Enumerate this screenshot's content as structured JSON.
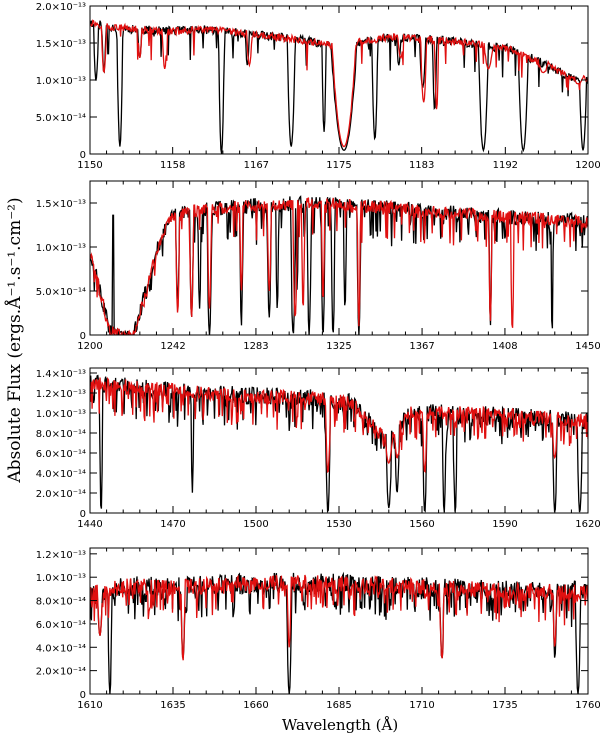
{
  "figure": {
    "ylabel": "Absolute Flux  (ergs.Å⁻¹.s⁻¹.cm⁻²)",
    "xlabel": "Wavelength (Å)"
  },
  "colors": {
    "observed": "#000000",
    "model": "#e01010",
    "axes": "#000000"
  },
  "chart_data": [
    {
      "type": "line",
      "xlim": [
        1150,
        1200
      ],
      "ylim": [
        0,
        2e-13
      ],
      "xticks": [
        "1150",
        "1158",
        "1167",
        "1175",
        "1183",
        "1192",
        "1200"
      ],
      "xtick_values": [
        1150,
        1158.3,
        1166.7,
        1175,
        1183.3,
        1191.7,
        1200
      ],
      "yticks": [
        "0",
        "5.0×10⁻¹⁴",
        "1.0×10⁻¹³",
        "1.5×10⁻¹³",
        "2.0×10⁻¹³"
      ],
      "ytick_values": [
        0,
        5e-14,
        1e-13,
        1.5e-13,
        2e-13
      ],
      "baseline": [
        [
          1150,
          1.78e-13
        ],
        [
          1152,
          1.72e-13
        ],
        [
          1155,
          1.68e-13
        ],
        [
          1158,
          1.66e-13
        ],
        [
          1162,
          1.68e-13
        ],
        [
          1166,
          1.62e-13
        ],
        [
          1170,
          1.56e-13
        ],
        [
          1173,
          1.5e-13
        ],
        [
          1175,
          1.45e-13
        ],
        [
          1176.5,
          1.5e-13
        ],
        [
          1180,
          1.58e-13
        ],
        [
          1184,
          1.55e-13
        ],
        [
          1188,
          1.5e-13
        ],
        [
          1192,
          1.42e-13
        ],
        [
          1196,
          1.2e-13
        ],
        [
          1198,
          1.05e-13
        ],
        [
          1200,
          1e-13
        ]
      ],
      "absorptions_observed": [
        [
          1150.6,
          1e-13,
          0.25
        ],
        [
          1151.4,
          1.1e-13,
          0.2
        ],
        [
          1153.0,
          1e-14,
          0.3
        ],
        [
          1155.0,
          1.3e-13,
          0.2
        ],
        [
          1163.2,
          0.0,
          0.3
        ],
        [
          1165.8,
          1.2e-13,
          0.2
        ],
        [
          1170.2,
          1e-14,
          0.4
        ],
        [
          1173.5,
          3e-14,
          0.2
        ],
        [
          1175.5,
          5e-15,
          1.3
        ],
        [
          1178.6,
          2e-14,
          0.3
        ],
        [
          1181.0,
          1.2e-13,
          0.2
        ],
        [
          1183.4,
          9e-14,
          0.3
        ],
        [
          1184.6,
          6e-14,
          0.2
        ],
        [
          1189.5,
          5e-15,
          0.5
        ],
        [
          1193.5,
          5e-15,
          0.5
        ],
        [
          1199.5,
          5e-15,
          0.35
        ]
      ],
      "absorptions_model": [
        [
          1151.4,
          1.1e-13,
          0.25
        ],
        [
          1155.0,
          1.3e-13,
          0.2
        ],
        [
          1157.5,
          1.15e-13,
          0.25
        ],
        [
          1166.0,
          1.2e-13,
          0.25
        ],
        [
          1175.5,
          1e-14,
          1.2
        ],
        [
          1181.2,
          1.3e-13,
          0.3
        ],
        [
          1183.5,
          7e-14,
          0.3
        ],
        [
          1184.8,
          6e-14,
          0.2
        ],
        [
          1190.0,
          1.15e-13,
          0.4
        ],
        [
          1195.5,
          1.1e-13,
          0.5
        ],
        [
          1199.0,
          9.5e-14,
          0.4
        ]
      ],
      "series": [
        {
          "color": "#000000"
        },
        {
          "color": "#e01010"
        }
      ]
    },
    {
      "type": "line",
      "xlim": [
        1200,
        1450
      ],
      "ylim": [
        0,
        1.75e-13
      ],
      "xticks": [
        "1200",
        "1242",
        "1283",
        "1325",
        "1367",
        "1408",
        "1450"
      ],
      "xtick_values": [
        1200,
        1241.7,
        1283.3,
        1325,
        1366.7,
        1408.3,
        1450
      ],
      "yticks": [
        "0",
        "5.0×10⁻¹⁴",
        "1.0×10⁻¹³",
        "1.5×10⁻¹³"
      ],
      "ytick_values": [
        0,
        5e-14,
        1e-13,
        1.5e-13
      ],
      "baseline": [
        [
          1200,
          9.5e-14
        ],
        [
          1205,
          5e-14
        ],
        [
          1210,
          5e-15
        ],
        [
          1215,
          0.0
        ],
        [
          1222,
          0.0
        ],
        [
          1228,
          5e-14
        ],
        [
          1234,
          1e-13
        ],
        [
          1240,
          1.33e-13
        ],
        [
          1250,
          1.4e-13
        ],
        [
          1270,
          1.45e-13
        ],
        [
          1290,
          1.48e-13
        ],
        [
          1310,
          1.5e-13
        ],
        [
          1330,
          1.48e-13
        ],
        [
          1350,
          1.45e-13
        ],
        [
          1370,
          1.4e-13
        ],
        [
          1390,
          1.37e-13
        ],
        [
          1410,
          1.34e-13
        ],
        [
          1430,
          1.32e-13
        ],
        [
          1450,
          1.28e-13
        ]
      ],
      "absorptions_observed": [
        [
          1211.5,
          1.36e-13,
          -1
        ],
        [
          1244,
          4e-14,
          1.0
        ],
        [
          1251,
          2e-14,
          1.0
        ],
        [
          1255,
          3e-14,
          0.8
        ],
        [
          1260,
          0.0,
          1.2
        ],
        [
          1276,
          1e-14,
          0.8
        ],
        [
          1290,
          2e-14,
          1.0
        ],
        [
          1294,
          3e-14,
          0.8
        ],
        [
          1302,
          0.0,
          1.2
        ],
        [
          1304,
          5e-14,
          0.6
        ],
        [
          1310,
          0.0,
          1.0
        ],
        [
          1317,
          0.0,
          1.0
        ],
        [
          1322,
          0.0,
          1.0
        ],
        [
          1328,
          3e-14,
          0.8
        ],
        [
          1335,
          0.0,
          1.0
        ],
        [
          1401,
          1e-14,
          0.7
        ],
        [
          1432,
          0.0,
          0.6
        ]
      ],
      "absorptions_model": [
        [
          1244,
          2.5e-14,
          1.0
        ],
        [
          1251,
          2e-14,
          1.0
        ],
        [
          1260,
          3e-14,
          1.0
        ],
        [
          1276,
          5e-14,
          0.8
        ],
        [
          1290,
          5e-14,
          1.0
        ],
        [
          1303,
          2e-14,
          1.2
        ],
        [
          1307,
          3e-14,
          0.8
        ],
        [
          1317,
          4e-14,
          0.8
        ],
        [
          1335,
          1e-14,
          0.8
        ],
        [
          1401,
          1.5e-14,
          0.8
        ],
        [
          1412,
          5e-15,
          0.9
        ]
      ],
      "series": [
        {
          "color": "#000000"
        },
        {
          "color": "#e01010"
        }
      ]
    },
    {
      "type": "line",
      "xlim": [
        1440,
        1620
      ],
      "ylim": [
        0,
        1.45e-13
      ],
      "xticks": [
        "1440",
        "1470",
        "1500",
        "1530",
        "1560",
        "1590",
        "1620"
      ],
      "xtick_values": [
        1440,
        1470,
        1500,
        1530,
        1560,
        1590,
        1620
      ],
      "yticks": [
        "0",
        "2.0×10⁻¹⁴",
        "4.0×10⁻¹⁴",
        "6.0×10⁻¹⁴",
        "8.0×10⁻¹⁴",
        "1.0×10⁻¹³",
        "1.2×10⁻¹³",
        "1.4×10⁻¹³"
      ],
      "ytick_values": [
        0,
        2e-14,
        4e-14,
        6e-14,
        8e-14,
        1e-13,
        1.2e-13,
        1.4e-13
      ],
      "baseline": [
        [
          1440,
          1.3e-13
        ],
        [
          1460,
          1.25e-13
        ],
        [
          1480,
          1.2e-13
        ],
        [
          1500,
          1.17e-13
        ],
        [
          1520,
          1.15e-13
        ],
        [
          1535,
          1.1e-13
        ],
        [
          1548,
          7e-14
        ],
        [
          1555,
          1e-13
        ],
        [
          1570,
          1e-13
        ],
        [
          1590,
          9.8e-14
        ],
        [
          1605,
          9.5e-14
        ],
        [
          1620,
          9.2e-14
        ]
      ],
      "absorptions_observed": [
        [
          1444,
          0.0,
          0.6
        ],
        [
          1477,
          2e-14,
          0.5
        ],
        [
          1526,
          0.0,
          0.9
        ],
        [
          1548,
          5e-15,
          1.0
        ],
        [
          1551,
          2e-14,
          0.8
        ],
        [
          1561,
          0.0,
          0.8
        ],
        [
          1568,
          0.0,
          0.7
        ],
        [
          1572,
          0.0,
          0.7
        ],
        [
          1608,
          0.0,
          0.8
        ],
        [
          1617,
          0.0,
          0.9
        ]
      ],
      "absorptions_model": [
        [
          1526,
          4e-14,
          0.9
        ],
        [
          1548,
          5e-14,
          1.2
        ],
        [
          1551,
          5.5e-14,
          0.9
        ],
        [
          1561,
          4e-14,
          0.8
        ],
        [
          1608,
          5.5e-14,
          0.9
        ]
      ],
      "series": [
        {
          "color": "#000000"
        },
        {
          "color": "#e01010"
        }
      ]
    },
    {
      "type": "line",
      "xlim": [
        1610,
        1760
      ],
      "ylim": [
        0,
        1.25e-13
      ],
      "xticks": [
        "1610",
        "1635",
        "1660",
        "1685",
        "1710",
        "1735",
        "1760"
      ],
      "xtick_values": [
        1610,
        1635,
        1660,
        1685,
        1710,
        1735,
        1760
      ],
      "yticks": [
        "0",
        "2.0×10⁻¹⁴",
        "4.0×10⁻¹⁴",
        "6.0×10⁻¹⁴",
        "8.0×10⁻¹⁴",
        "1.0×10⁻¹³",
        "1.2×10⁻¹³"
      ],
      "ytick_values": [
        0,
        2e-14,
        4e-14,
        6e-14,
        8e-14,
        1e-13,
        1.2e-13
      ],
      "baseline": [
        [
          1610,
          8.5e-14
        ],
        [
          1620,
          9.2e-14
        ],
        [
          1640,
          9.2e-14
        ],
        [
          1660,
          9.5e-14
        ],
        [
          1680,
          9.5e-14
        ],
        [
          1700,
          9.3e-14
        ],
        [
          1720,
          9e-14
        ],
        [
          1740,
          8.8e-14
        ],
        [
          1760,
          8.8e-14
        ]
      ],
      "absorptions_observed": [
        [
          1613,
          5e-14,
          0.7
        ],
        [
          1616,
          0.0,
          0.6
        ],
        [
          1638,
          3e-14,
          0.6
        ],
        [
          1670,
          0.0,
          0.8
        ],
        [
          1716,
          3e-14,
          0.6
        ],
        [
          1750,
          3e-14,
          0.5
        ],
        [
          1757,
          0.0,
          0.8
        ]
      ],
      "absorptions_model": [
        [
          1613,
          5e-14,
          0.7
        ],
        [
          1638,
          2.8e-14,
          0.6
        ],
        [
          1670,
          4e-14,
          0.6
        ],
        [
          1716,
          3e-14,
          0.6
        ],
        [
          1750,
          4e-14,
          0.5
        ]
      ],
      "series": [
        {
          "color": "#000000"
        },
        {
          "color": "#e01010"
        }
      ]
    }
  ]
}
